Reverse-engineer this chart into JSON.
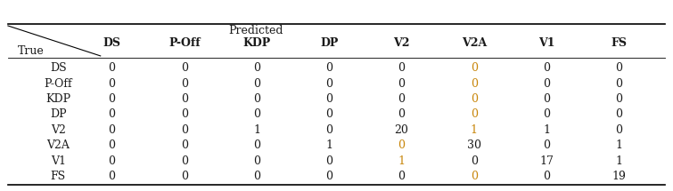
{
  "labels": [
    "DS",
    "P-Off",
    "KDP",
    "DP",
    "V2",
    "V2A",
    "V1",
    "FS"
  ],
  "matrix": [
    [
      0,
      0,
      0,
      0,
      0,
      0,
      0,
      0
    ],
    [
      0,
      0,
      0,
      0,
      0,
      0,
      0,
      0
    ],
    [
      0,
      0,
      0,
      0,
      0,
      0,
      0,
      0
    ],
    [
      0,
      0,
      0,
      0,
      0,
      0,
      0,
      0
    ],
    [
      0,
      0,
      1,
      0,
      20,
      1,
      1,
      0
    ],
    [
      0,
      0,
      0,
      1,
      0,
      30,
      0,
      1
    ],
    [
      0,
      0,
      0,
      0,
      1,
      0,
      17,
      1
    ],
    [
      0,
      0,
      0,
      0,
      0,
      0,
      0,
      19
    ]
  ],
  "orange_cells": [
    [
      0,
      5
    ],
    [
      1,
      5
    ],
    [
      2,
      5
    ],
    [
      3,
      5
    ],
    [
      4,
      5
    ],
    [
      5,
      4
    ],
    [
      6,
      4
    ],
    [
      7,
      5
    ]
  ],
  "orange_color": "#C8860A",
  "black_color": "#1a1a1a",
  "header_color": "#1a1a1a",
  "bg_color": "#ffffff",
  "font_size": 9,
  "header_font_size": 9
}
